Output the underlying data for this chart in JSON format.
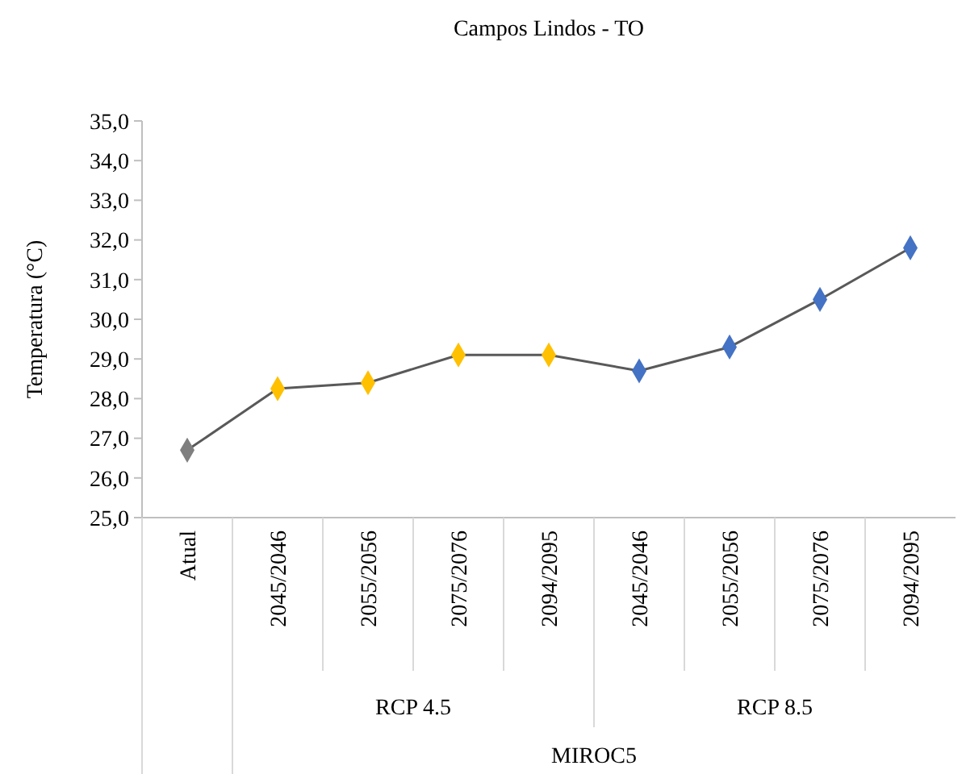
{
  "chart_data": {
    "type": "line",
    "title": "Campos Lindos - TO",
    "ylabel": "Temperatura (°C)",
    "categories": [
      "Atual",
      "2045/2046",
      "2055/2056",
      "2075/2076",
      "2094/2095",
      "2045/2046",
      "2055/2056",
      "2075/2076",
      "2094/2095"
    ],
    "series": [
      {
        "color": "#595959",
        "colors": [
          "#7f7f7f",
          "#ffc000",
          "#ffc000",
          "#ffc000",
          "#ffc000",
          "#4472c4",
          "#4472c4",
          "#4472c4",
          "#4472c4"
        ],
        "values": [
          26.7,
          28.25,
          28.4,
          29.1,
          29.1,
          28.7,
          29.3,
          30.5,
          31.8
        ]
      }
    ],
    "ylim": [
      25,
      35
    ],
    "yticks": [
      {
        "value": 25,
        "label": "25,0"
      },
      {
        "value": 26,
        "label": "26,0"
      },
      {
        "value": 27,
        "label": "27,0"
      },
      {
        "value": 28,
        "label": "28,0"
      },
      {
        "value": 29,
        "label": "29,0"
      },
      {
        "value": 30,
        "label": "30,0"
      },
      {
        "value": 31,
        "label": "31,0"
      },
      {
        "value": 32,
        "label": "32,0"
      },
      {
        "value": 33,
        "label": "33,0"
      },
      {
        "value": 34,
        "label": "34,0"
      },
      {
        "value": 35,
        "label": "35,0"
      }
    ],
    "annotations": [
      "RCP 4.5",
      "RCP 8.5",
      "MIROC5"
    ],
    "marker": "diamond",
    "line_style": "solid",
    "grid": false
  }
}
